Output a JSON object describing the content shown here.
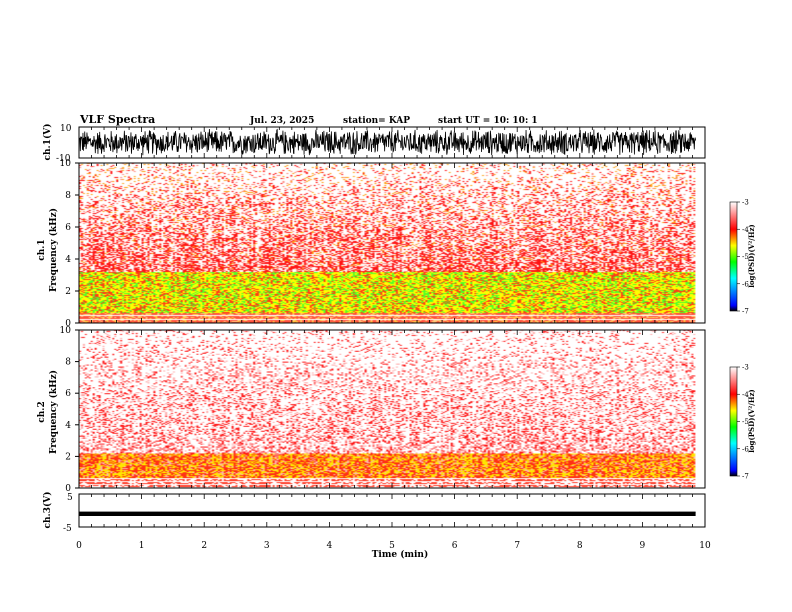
{
  "header": {
    "title": "VLF Spectra",
    "date": "Jul. 23, 2025",
    "station": "station= KAP",
    "start": "start  UT  =    10: 10: 1"
  },
  "colors": {
    "spectrum": [
      "#ffffff",
      "#ff0000",
      "#ffff00",
      "#00ff00",
      "#0000ff",
      "#000000"
    ],
    "trace": "#000000"
  },
  "chart_data": [
    {
      "type": "line",
      "name": "ch1-waveform",
      "ylabel": "ch.1(V)",
      "ylim": [
        -10,
        10
      ],
      "yticks": [
        "10",
        "-10"
      ],
      "xlim": [
        0,
        9.85
      ],
      "description_of_signal": "noisy waveform oscillating mostly between about -10 and 10 V"
    },
    {
      "type": "heatmap",
      "name": "ch1-spectrogram",
      "ylabel": "ch.1\nFrequency (kHz)",
      "ylim": [
        0,
        10
      ],
      "yticks": [
        "0",
        "2",
        "4",
        "6",
        "8",
        "10"
      ],
      "xlim": [
        0,
        9.85
      ],
      "colorbar": {
        "label": "log(PSD)(V²/Hz)",
        "range": [
          -7,
          -3
        ],
        "ticks": [
          "-3",
          "-4",
          "-5",
          "-6",
          "-7"
        ]
      },
      "bands_khz": [
        [
          0,
          0.6,
          "red"
        ],
        [
          0.6,
          3.2,
          "yellow/green"
        ],
        [
          3.2,
          10,
          "red/white"
        ]
      ]
    },
    {
      "type": "heatmap",
      "name": "ch2-spectrogram",
      "ylabel": "ch.2\nFrequency (kHz)",
      "ylim": [
        0,
        10
      ],
      "yticks": [
        "0",
        "2",
        "4",
        "6",
        "8",
        "10"
      ],
      "xlim": [
        0,
        9.85
      ],
      "colorbar": {
        "label": "log(PSD)(V²/Hz)",
        "range": [
          -7,
          -3
        ],
        "ticks": [
          "-3",
          "-4",
          "-5",
          "-6",
          "-7"
        ]
      },
      "bands_khz": [
        [
          0,
          0.6,
          "red/white"
        ],
        [
          0.6,
          2.2,
          "yellow/red"
        ],
        [
          2.2,
          10,
          "white/red"
        ]
      ]
    },
    {
      "type": "line",
      "name": "ch3-waveform",
      "ylabel": "ch.3(V)",
      "ylim": [
        -5,
        5
      ],
      "yticks": [
        "5",
        "0",
        "-5"
      ],
      "xlim": [
        0,
        9.85
      ],
      "level": -1
    }
  ],
  "xaxis": {
    "label": "Time (min)",
    "range": [
      0,
      10
    ],
    "ticks": [
      "0",
      "1",
      "2",
      "3",
      "4",
      "5",
      "6",
      "7",
      "8",
      "9",
      "10"
    ]
  }
}
